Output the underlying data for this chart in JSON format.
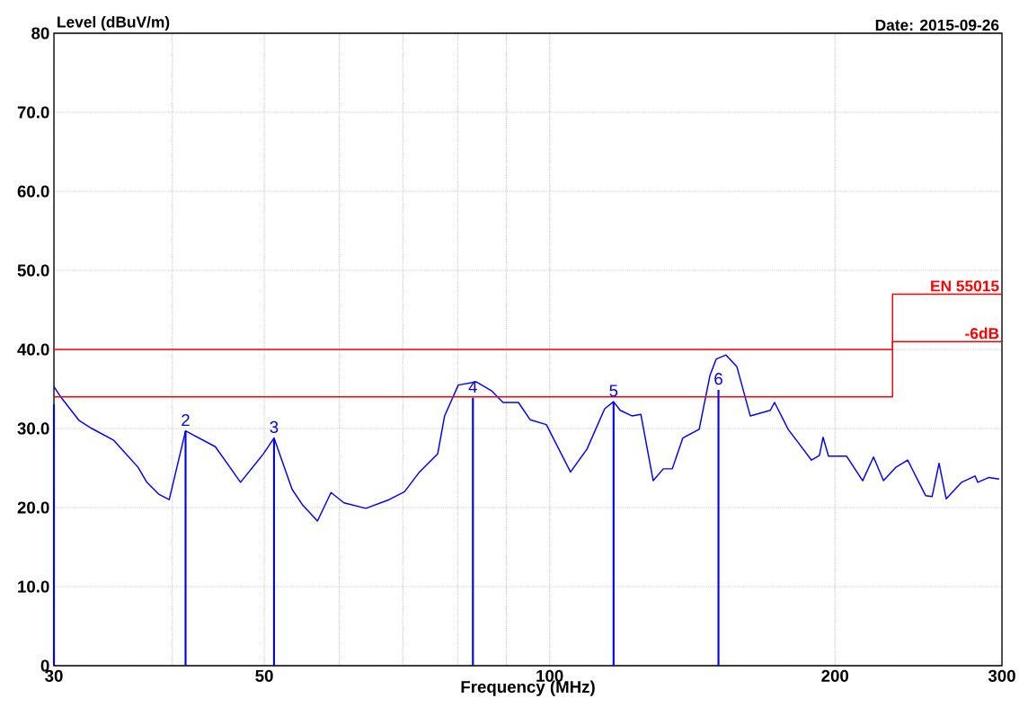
{
  "chart_data": {
    "type": "line",
    "xlabel": "Frequency (MHz)",
    "ylabel": "Level (dBuV/m)",
    "annotations": [
      "Date: 2015-09-26",
      {
        "text": "2",
        "x": 41.3,
        "y": 29.7
      },
      {
        "text": "3",
        "x": 51.2,
        "y": 28.8
      },
      {
        "text": "4",
        "x": 83.0,
        "y": 33.9
      },
      {
        "text": "5",
        "x": 116.8,
        "y": 33.4
      },
      {
        "text": "6",
        "x": 150.7,
        "y": 34.9
      }
    ],
    "log": "x",
    "xlim": [
      30,
      300
    ],
    "xticks": [
      30,
      {
        "value": 40,
        "label": null
      },
      50,
      {
        "value": 60,
        "label": null
      },
      {
        "value": 70,
        "label": null
      },
      {
        "value": 80,
        "label": null
      },
      {
        "value": 90,
        "label": null
      },
      100,
      200,
      300
    ],
    "ylim": [
      0,
      80
    ],
    "yticks": [
      0,
      {
        "value": 10,
        "label": "10.0"
      },
      {
        "value": 20,
        "label": "20.0"
      },
      {
        "value": 30,
        "label": "30.0"
      },
      {
        "value": 40,
        "label": "40.0"
      },
      {
        "value": 50,
        "label": "50.0"
      },
      {
        "value": 60,
        "label": "60.0"
      },
      {
        "value": 70,
        "label": "70.0"
      },
      80
    ],
    "grid": true,
    "series": [
      {
        "color": "#0000ff",
        "x": [
          30,
          30.5,
          31.9,
          32.9,
          34.7,
          36.8,
          37.6,
          38.7,
          39.7,
          41.3,
          44.4,
          47.2,
          49.9,
          51.2,
          53.5,
          54.9,
          56.9,
          58.8,
          60.7,
          64.0,
          67.7,
          70.3,
          72.9,
          76.2,
          77.5,
          80.1,
          83.7,
          86.8,
          89.3,
          92.7,
          95.4,
          99.2,
          105.2,
          109.5,
          114.3,
          116.8,
          118.7,
          122.1,
          124.8,
          128.6,
          131.8,
          134.7,
          138.2,
          143.8,
          147.6,
          149.9,
          153.5,
          157.6,
          162.8,
          170.9,
          172.7,
          178.5,
          188.9,
          192.6,
          194.3,
          196.9,
          205.7,
          213.9,
          219.6,
          225.0,
          231.9,
          238.6,
          249.3,
          253.2,
          257.5,
          262.0,
          272.0,
          281.0,
          282.9,
          290.4,
          298.0
        ],
        "values": [
          35.3,
          34.0,
          31.0,
          30.0,
          28.5,
          25.1,
          23.2,
          21.7,
          21.0,
          29.7,
          27.7,
          23.2,
          26.8,
          28.8,
          22.3,
          20.3,
          18.3,
          21.9,
          20.6,
          19.9,
          21.0,
          22.0,
          24.5,
          26.8,
          31.6,
          35.5,
          35.9,
          34.8,
          33.3,
          33.3,
          31.1,
          30.5,
          24.5,
          27.4,
          32.5,
          33.4,
          32.3,
          31.6,
          31.8,
          23.4,
          24.9,
          24.9,
          28.8,
          29.9,
          36.7,
          38.8,
          39.3,
          37.8,
          31.6,
          32.3,
          33.3,
          29.9,
          26.0,
          26.6,
          28.9,
          26.5,
          26.5,
          23.4,
          26.4,
          23.4,
          25.1,
          26.0,
          21.5,
          21.4,
          25.6,
          21.1,
          23.2,
          24.0,
          23.2,
          23.8,
          23.6
        ]
      },
      {
        "type": "line",
        "name": "EN 55015",
        "color": "#ff0000",
        "x": [
          30,
          230,
          230,
          300
        ],
        "values": [
          40,
          40,
          47,
          47
        ]
      },
      {
        "type": "line",
        "name": "-6dB",
        "color": "#ff0000",
        "x": [
          30,
          230,
          230,
          300
        ],
        "values": [
          34,
          34,
          41,
          41
        ]
      },
      {
        "type": "bar",
        "color": "#0000ff",
        "x": [
          30,
          41.3,
          51.2,
          83.0,
          116.8,
          150.7
        ],
        "values": [
          33.1,
          29.7,
          28.8,
          33.9,
          33.4,
          34.9
        ]
      }
    ]
  }
}
